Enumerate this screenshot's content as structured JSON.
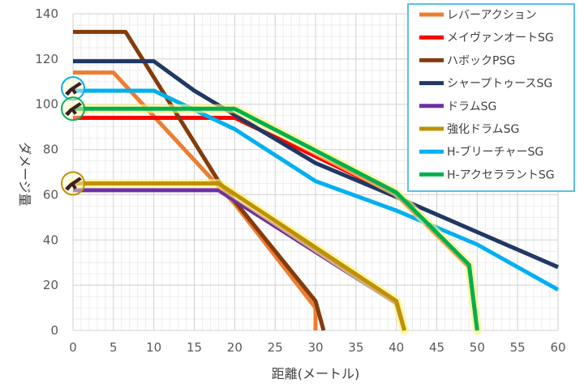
{
  "chart_data": {
    "type": "line",
    "xlabel": "距離(メートル)",
    "ylabel": "ダメージ量",
    "xlim": [
      0,
      60
    ],
    "ylim": [
      0,
      140
    ],
    "x_ticks": [
      0,
      5,
      10,
      15,
      20,
      25,
      30,
      35,
      40,
      45,
      50,
      55,
      60
    ],
    "y_ticks": [
      0,
      20,
      40,
      60,
      80,
      100,
      120,
      140
    ],
    "grid": true,
    "legend_position": "top-right",
    "series": [
      {
        "name": "レバーアクション",
        "color": "#ED7D31",
        "highlight": false,
        "points": [
          [
            0,
            114
          ],
          [
            5,
            114
          ],
          [
            20,
            56
          ],
          [
            30,
            10
          ],
          [
            30,
            0
          ]
        ]
      },
      {
        "name": "メイヴァンオートSG",
        "color": "#FF0000",
        "highlight": false,
        "points": [
          [
            0,
            94
          ],
          [
            20,
            94
          ],
          [
            40,
            60
          ],
          [
            49,
            28
          ],
          [
            50,
            0
          ]
        ]
      },
      {
        "name": "ハボックPSG",
        "color": "#843C0C",
        "highlight": false,
        "points": [
          [
            0,
            132
          ],
          [
            6.5,
            132
          ],
          [
            18,
            66
          ],
          [
            30,
            13
          ],
          [
            31,
            0
          ]
        ]
      },
      {
        "name": "シャープトゥースSG",
        "color": "#203864",
        "highlight": false,
        "points": [
          [
            0,
            119
          ],
          [
            10,
            119
          ],
          [
            15,
            106
          ],
          [
            30,
            74
          ],
          [
            40,
            59
          ],
          [
            60,
            28
          ]
        ]
      },
      {
        "name": "ドラムSG",
        "color": "#7030A0",
        "highlight": false,
        "points": [
          [
            0,
            62
          ],
          [
            18,
            62
          ],
          [
            40,
            12
          ],
          [
            41,
            0
          ]
        ]
      },
      {
        "name": "強化ドラムSG",
        "color": "#BF9000",
        "highlight": true,
        "points": [
          [
            0,
            65
          ],
          [
            18,
            65
          ],
          [
            40,
            13
          ],
          [
            41,
            0
          ]
        ]
      },
      {
        "name": "H-ブリーチャーSG",
        "color": "#00B0F0",
        "highlight": false,
        "points": [
          [
            0,
            106
          ],
          [
            10,
            106
          ],
          [
            20,
            89
          ],
          [
            30,
            66
          ],
          [
            40,
            53
          ],
          [
            50,
            38
          ],
          [
            60,
            18
          ]
        ]
      },
      {
        "name": "H-アクセララントSG",
        "color": "#00B050",
        "highlight": true,
        "points": [
          [
            0,
            98
          ],
          [
            20,
            98
          ],
          [
            40,
            61
          ],
          [
            49,
            29
          ],
          [
            50,
            0
          ]
        ]
      }
    ],
    "markers": [
      {
        "y": 107,
        "ring_color": "#00B0F0"
      },
      {
        "y": 98,
        "ring_color": "#00B050"
      },
      {
        "y": 65,
        "ring_color": "#BF9000"
      }
    ]
  }
}
